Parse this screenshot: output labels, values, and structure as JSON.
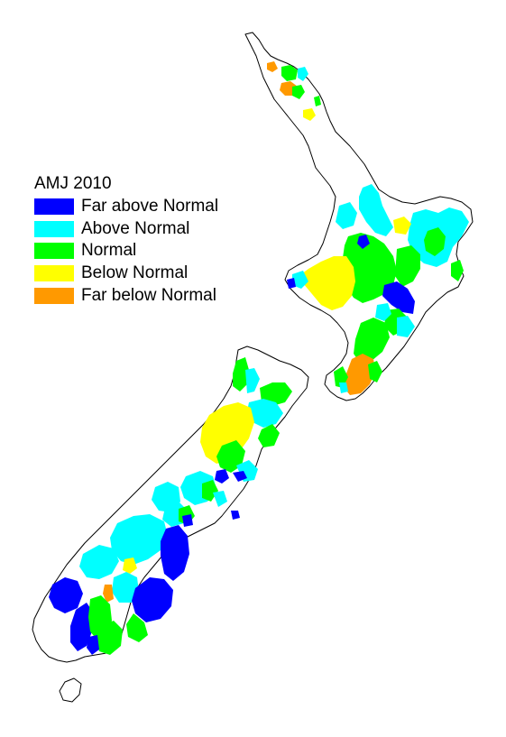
{
  "legend": {
    "title": "AMJ 2010",
    "items": [
      {
        "key": "far-above",
        "label": "Far above Normal",
        "color": "#0000ff"
      },
      {
        "key": "above",
        "label": "Above Normal",
        "color": "#00ffff"
      },
      {
        "key": "normal",
        "label": "Normal",
        "color": "#00ff00"
      },
      {
        "key": "below",
        "label": "Below Normal",
        "color": "#ffff00"
      },
      {
        "key": "far-below",
        "label": "Far below Normal",
        "color": "#ff9900"
      }
    ]
  }
}
